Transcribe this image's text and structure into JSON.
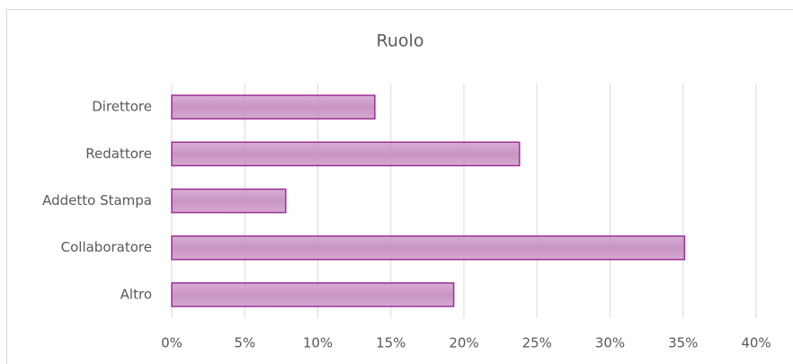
{
  "chart_data": {
    "type": "bar",
    "orientation": "horizontal",
    "title": "Ruolo",
    "categories": [
      "Direttore",
      "Redattore",
      "Addetto Stampa",
      "Collaboratore",
      "Altro"
    ],
    "values": [
      13.9,
      23.8,
      7.8,
      35.1,
      19.3
    ],
    "color": "#c994c4",
    "edge_color": "#9c2e97",
    "xlim": [
      0,
      40
    ],
    "xticks": [
      {
        "value": 0,
        "label": "0%"
      },
      {
        "value": 5,
        "label": "5%"
      },
      {
        "value": 10,
        "label": "10%"
      },
      {
        "value": 15,
        "label": "15%"
      },
      {
        "value": 20,
        "label": "20%"
      },
      {
        "value": 25,
        "label": "25%"
      },
      {
        "value": 30,
        "label": "30%"
      },
      {
        "value": 35,
        "label": "35%"
      },
      {
        "value": 40,
        "label": "40%"
      }
    ],
    "grid": true
  }
}
